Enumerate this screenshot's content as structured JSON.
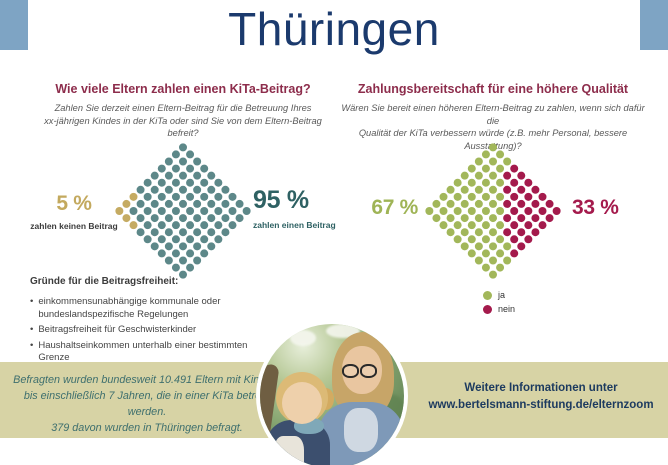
{
  "header": {
    "title": "Thüringen"
  },
  "left_panel": {
    "heading": "Wie viele Eltern zahlen einen KiTa-Beitrag?",
    "subtitle_line1": "Zahlen Sie derzeit einen Eltern-Beitrag für die Betreuung Ihres",
    "subtitle_line2": "xx-jährigen Kindes in der KiTa oder sind Sie von dem Eltern-Beitrag befreit?",
    "label_left_value": "5 %",
    "label_left_caption": "zahlen keinen Beitrag",
    "label_right_value": "95 %",
    "label_right_caption": "zahlen einen Beitrag"
  },
  "right_panel": {
    "heading": "Zahlungsbereitschaft für eine höhere Qualität",
    "subtitle_line1": "Wären Sie bereit einen höheren Eltern-Beitrag zu zahlen, wenn sich dafür die",
    "subtitle_line2": "Qualität der KiTa verbessern würde (z.B. mehr Personal, bessere Ausstattung)?",
    "label_left_value": "67 %",
    "label_right_value": "33 %",
    "legend": [
      {
        "label": "ja",
        "color": "#a2b75a"
      },
      {
        "label": "nein",
        "color": "#a41a4c"
      }
    ]
  },
  "reasons": {
    "heading": "Gründe für die Beitragsfreiheit:",
    "items": [
      "einkommensunabhängige kommunale oder bundeslandspezifische Regelungen",
      "Beitragsfreiheit für Geschwisterkinder",
      "Haushaltseinkommen unterhalb einer bestimmten Grenze"
    ]
  },
  "footer": {
    "note_line1": "Befragten wurden bundesweit 10.491 Eltern mit Kindern",
    "note_line2": "bis einschließlich 7 Jahren, die in einer KiTa betreut werden.",
    "note_line3": "379 davon wurden in Thüringen befragt.",
    "info_line1": "Weitere Informationen unter",
    "info_line2": "www.bertelsmann-stiftung.de/elternzoom"
  },
  "colors": {
    "corner_square": "#7ea4c4",
    "title_navy": "#1b3a6d",
    "heading_maroon": "#8d2d4c",
    "teal_dot": "#5d8889",
    "gold_dot": "#c5ab62",
    "green_dot": "#a2b75a",
    "crimson_dot": "#a41a4c",
    "pct_gold": "#c3a95e",
    "pct_teal": "#2e6163",
    "pct_green": "#9fb456",
    "pct_crimson": "#a41a4c",
    "band_khaki": "#d7d3a5",
    "note_teal": "#3e6f6e",
    "info_navy": "#1c3a5f"
  },
  "chart_data": [
    {
      "type": "waffle",
      "shape": "10x10 grid rotated 45deg (diamond)",
      "title": "Wie viele Eltern zahlen einen KiTa-Beitrag?",
      "total_dots": 100,
      "rows": 10,
      "cols": 10,
      "segments": [
        {
          "label": "zahlen keinen Beitrag",
          "value": 5,
          "color": "#c5ab62",
          "corner": "left",
          "cells": [
            "9,0",
            "8,0",
            "7,0",
            "9,1",
            "9,2"
          ]
        },
        {
          "label": "zahlen einen Beitrag",
          "value": 95,
          "color": "#5d8889"
        }
      ]
    },
    {
      "type": "waffle",
      "shape": "10x10 grid rotated 45deg (diamond)",
      "title": "Zahlungsbereitschaft für eine höhere Qualität",
      "total_dots": 100,
      "rows": 10,
      "cols": 10,
      "segments": [
        {
          "label": "nein",
          "value": 33,
          "color": "#a41a4c",
          "corner": "right",
          "cells": [
            "0,3",
            "0,4",
            "0,5",
            "0,6",
            "0,7",
            "0,8",
            "0,9",
            "1,3",
            "1,4",
            "1,5",
            "1,6",
            "1,7",
            "1,8",
            "1,9",
            "2,4",
            "2,5",
            "2,6",
            "2,7",
            "2,8",
            "2,9",
            "3,5",
            "3,6",
            "3,7",
            "3,8",
            "3,9",
            "4,6",
            "4,7",
            "4,8",
            "4,9",
            "5,7",
            "5,8",
            "5,9",
            "6,9"
          ]
        },
        {
          "label": "ja",
          "value": 67,
          "color": "#a2b75a"
        }
      ],
      "legend_position": "below"
    }
  ]
}
